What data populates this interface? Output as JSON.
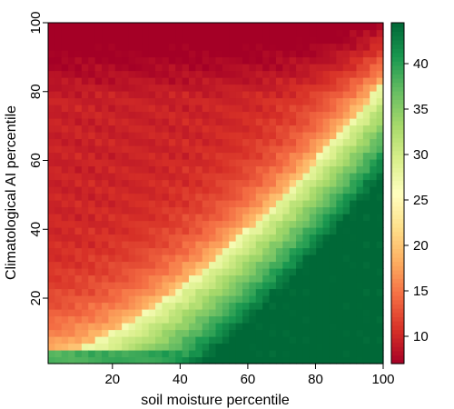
{
  "chart_data": {
    "type": "heatmap",
    "title": "",
    "xlabel": "soil moisture percentile",
    "ylabel": "Climatological AI percentile",
    "xlim": [
      1,
      100
    ],
    "ylim": [
      1,
      100
    ],
    "x_ticks": [
      "20",
      "40",
      "60",
      "80",
      "100"
    ],
    "y_ticks": [
      "20",
      "40",
      "60",
      "80",
      "100"
    ],
    "colorbar": {
      "range": [
        7,
        44.5
      ],
      "ticks": [
        "10",
        "15",
        "20",
        "25",
        "30",
        "35",
        "40"
      ],
      "colormap": "RdYlGn",
      "colors": [
        "#a50026",
        "#d73027",
        "#f46d43",
        "#fdae61",
        "#fee08b",
        "#ffffbf",
        "#d9ef8b",
        "#a6d96a",
        "#66bd63",
        "#1a9850",
        "#006837"
      ]
    },
    "model": {
      "description_points": [
        {
          "sm": 5,
          "ai": 95,
          "value": 8
        },
        {
          "sm": 95,
          "ai": 95,
          "value": 12
        },
        {
          "sm": 50,
          "ai": 50,
          "value": 24
        },
        {
          "sm": 95,
          "ai": 20,
          "value": 43
        },
        {
          "sm": 10,
          "ai": 5,
          "value": 38
        },
        {
          "sm": 5,
          "ai": 40,
          "value": 12
        }
      ]
    }
  }
}
